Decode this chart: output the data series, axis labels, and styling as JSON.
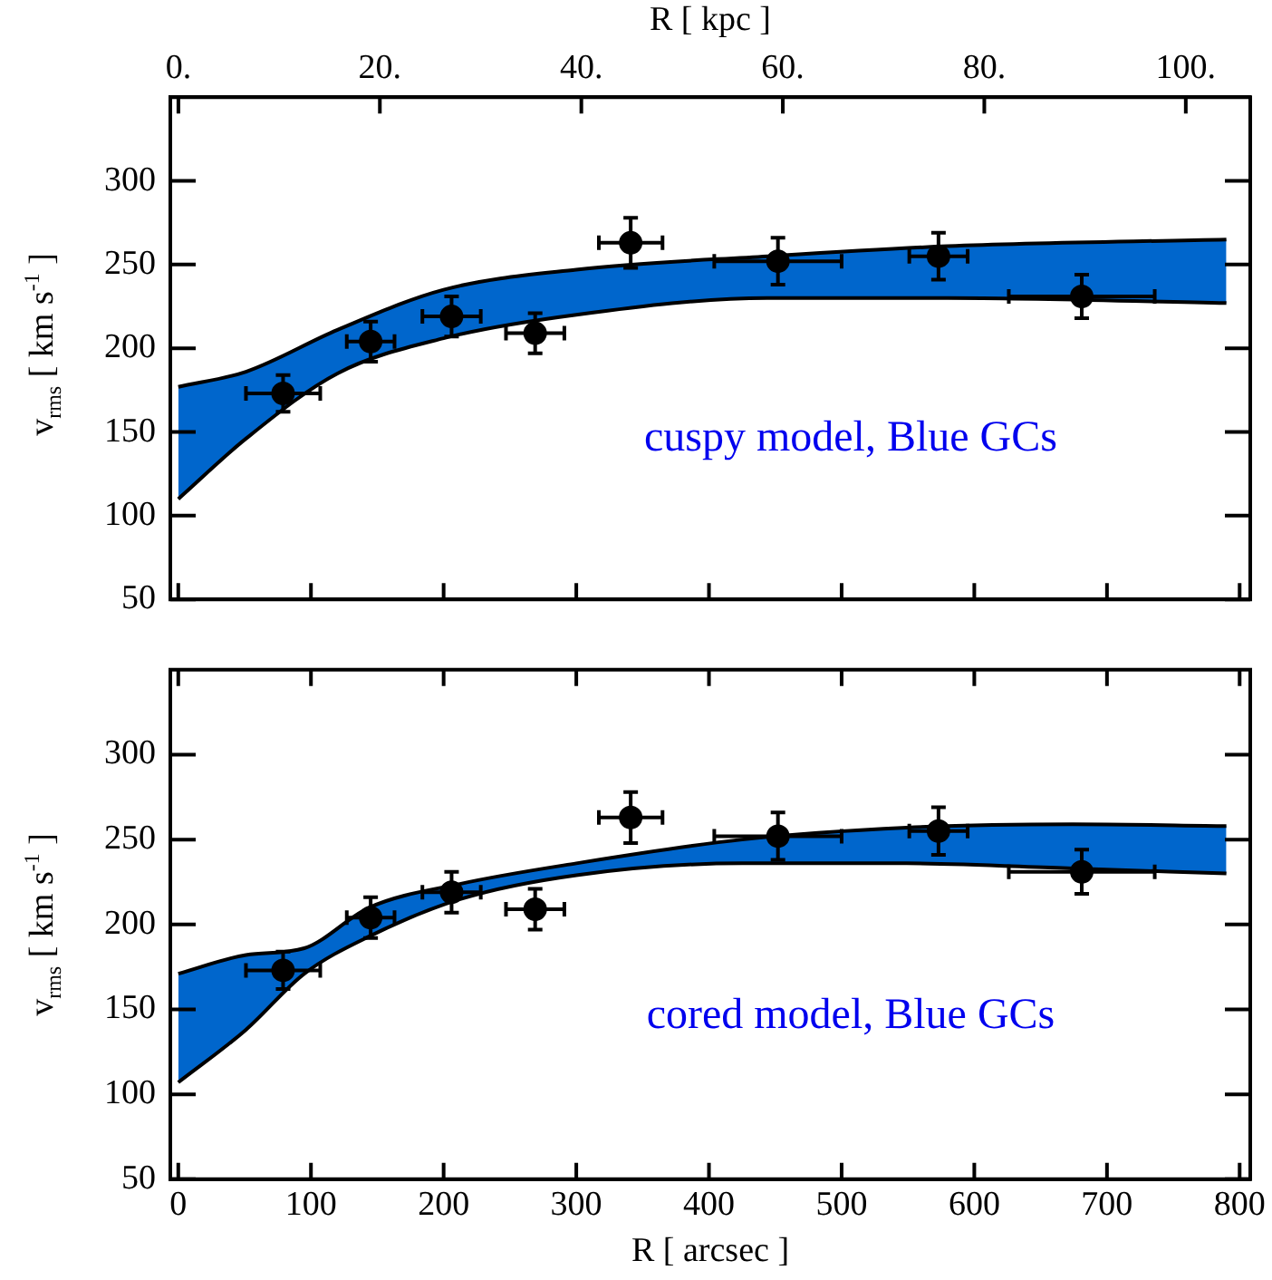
{
  "chart_data": [
    {
      "type": "scatter",
      "ylabel": "v$_{rms}$ [ km s$^{-1}$ ]",
      "x2label": "R [ kpc ]",
      "annotations": [
        "cuspy model, Blue GCs"
      ],
      "xlim": [
        -6,
        808
      ],
      "xticks": [
        0,
        100,
        200,
        300,
        400,
        500,
        600,
        700,
        800
      ],
      "x2lim": [
        -0.8,
        106.4
      ],
      "x2ticks": [
        {
          "value": 0,
          "label": "0."
        },
        {
          "value": 20,
          "label": "20."
        },
        {
          "value": 40,
          "label": "40."
        },
        {
          "value": 60,
          "label": "60."
        },
        {
          "value": 80,
          "label": "80."
        },
        {
          "value": 100,
          "label": "100."
        }
      ],
      "ylim": [
        50,
        350
      ],
      "yticks": [
        50,
        100,
        150,
        200,
        250,
        300
      ],
      "tick_labels": "y",
      "grid": false,
      "legend": false,
      "series": [
        {
          "type": "line",
          "marker": "none",
          "color": "#000000",
          "x": [
            0,
            51,
            120,
            200,
            300,
            444,
            580,
            790
          ],
          "lower": [
            110,
            146,
            185,
            206,
            220,
            230,
            230,
            227
          ],
          "upper": [
            177,
            186,
            211,
            235,
            247,
            255,
            261,
            265
          ],
          "values": [
            177,
            186,
            211,
            235,
            247,
            255,
            261,
            265
          ]
        },
        {
          "type": "line",
          "marker": "none",
          "color": "#000000",
          "x": [
            0,
            51,
            120,
            200,
            300,
            444,
            580,
            790
          ],
          "values": [
            110,
            146,
            185,
            206,
            220,
            230,
            230,
            227
          ]
        },
        {
          "type": "scatter",
          "marker": "circle",
          "color": "#000000",
          "x": [
            79,
            145,
            206,
            269,
            341,
            452,
            573,
            681
          ],
          "values": [
            173,
            204,
            219,
            209,
            263,
            252,
            255,
            231
          ],
          "errors": [
            11,
            12,
            12,
            12,
            15,
            14,
            14,
            13
          ],
          "xerrors": [
            28,
            18,
            22,
            22,
            24,
            48,
            22,
            55
          ]
        }
      ]
    },
    {
      "type": "scatter",
      "ylabel": "v$_{rms}$ [ km s$^{-1}$ ]",
      "xlabel": "R [ arcsec ]",
      "annotations": [
        "cored model, Blue GCs"
      ],
      "xlim": [
        -6,
        808
      ],
      "xticks": [
        0,
        100,
        200,
        300,
        400,
        500,
        600,
        700,
        800
      ],
      "ylim": [
        50,
        350
      ],
      "yticks": [
        50,
        100,
        150,
        200,
        250,
        300
      ],
      "grid": false,
      "legend": false,
      "series": [
        {
          "type": "line",
          "marker": "none",
          "color": "#000000",
          "x": [
            0,
            51,
            95,
            144,
            213,
            300,
            425,
            549,
            674,
            790
          ],
          "lower": [
            107,
            138,
            171,
            193,
            215,
            229,
            236,
            236,
            233,
            230
          ],
          "upper": [
            171,
            182,
            186,
            210,
            224,
            236,
            250,
            257,
            259,
            258
          ],
          "values": [
            171,
            182,
            186,
            210,
            224,
            236,
            250,
            257,
            259,
            258
          ]
        },
        {
          "type": "line",
          "marker": "none",
          "color": "#000000",
          "x": [
            0,
            51,
            95,
            144,
            213,
            300,
            425,
            549,
            674,
            790
          ],
          "values": [
            107,
            138,
            171,
            193,
            215,
            229,
            236,
            236,
            233,
            230
          ]
        },
        {
          "type": "scatter",
          "marker": "circle",
          "color": "#000000",
          "x": [
            79,
            145,
            206,
            269,
            341,
            452,
            573,
            681
          ],
          "values": [
            173,
            204,
            219,
            209,
            263,
            252,
            255,
            231
          ],
          "errors": [
            11,
            12,
            12,
            12,
            15,
            14,
            14,
            13
          ],
          "xerrors": [
            28,
            18,
            22,
            22,
            24,
            48,
            22,
            55
          ]
        }
      ]
    }
  ]
}
